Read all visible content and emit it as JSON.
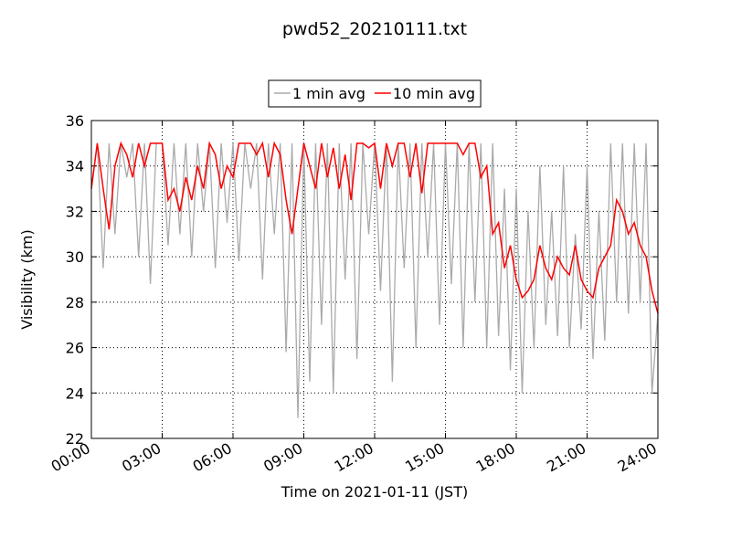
{
  "chart_data": {
    "type": "line",
    "title": "pwd52_20210111.txt",
    "x_label": "Time on 2021-01-11 (JST)",
    "y_label": "Visibility (km)",
    "x": [
      0,
      0.25,
      0.5,
      0.75,
      1,
      1.25,
      1.5,
      1.75,
      2,
      2.25,
      2.5,
      2.75,
      3,
      3.25,
      3.5,
      3.75,
      4,
      4.25,
      4.5,
      4.75,
      5,
      5.25,
      5.5,
      5.75,
      6,
      6.25,
      6.5,
      6.75,
      7,
      7.25,
      7.5,
      7.75,
      8,
      8.25,
      8.5,
      8.75,
      9,
      9.25,
      9.5,
      9.75,
      10,
      10.25,
      10.5,
      10.75,
      11,
      11.25,
      11.5,
      11.75,
      12,
      12.25,
      12.5,
      12.75,
      13,
      13.25,
      13.5,
      13.75,
      14,
      14.25,
      14.5,
      14.75,
      15,
      15.25,
      15.5,
      15.75,
      16,
      16.25,
      16.5,
      16.75,
      17,
      17.25,
      17.5,
      17.75,
      18,
      18.25,
      18.5,
      18.75,
      19,
      19.25,
      19.5,
      19.75,
      20,
      20.25,
      20.5,
      20.75,
      21,
      21.25,
      21.5,
      21.75,
      22,
      22.25,
      22.5,
      22.75,
      23,
      23.25,
      23.5,
      23.75,
      24
    ],
    "series": [
      {
        "name": "1 min avg",
        "color": "#aaaaaa",
        "values": [
          33,
          35,
          29.5,
          35,
          31,
          35,
          33.5,
          35,
          30,
          35,
          28.8,
          35,
          35,
          30.5,
          35,
          31,
          35,
          30,
          35,
          32,
          35,
          29.5,
          35,
          31.5,
          35,
          29.8,
          35,
          33,
          35,
          29,
          35,
          31,
          35,
          25.8,
          35,
          22.9,
          35,
          24.5,
          35,
          27,
          35,
          24,
          35,
          29,
          35,
          25.5,
          35,
          31,
          35,
          28.5,
          35,
          24.5,
          35,
          29.5,
          35,
          26,
          35,
          30,
          35,
          27,
          35,
          28.8,
          35,
          26,
          35,
          28,
          35,
          26,
          35,
          26.5,
          33,
          25,
          33,
          24,
          32,
          26,
          34,
          27,
          32,
          26.5,
          34,
          26,
          31,
          26.8,
          34,
          25.5,
          32,
          26.3,
          35,
          28,
          35,
          27.5,
          35,
          28,
          35,
          24,
          27.5
        ]
      },
      {
        "name": "10 min avg",
        "color": "#ff0000",
        "values": [
          33,
          35,
          33,
          31.2,
          34,
          35,
          34.5,
          33.5,
          35,
          34,
          35,
          35,
          35,
          32.5,
          33,
          32,
          33.5,
          32.5,
          34,
          33,
          35,
          34.5,
          33,
          34,
          33.5,
          35,
          35,
          35,
          34.5,
          35,
          33.5,
          35,
          34.5,
          32.5,
          31,
          33,
          35,
          34,
          33,
          35,
          33.5,
          34.8,
          33,
          34.5,
          32.5,
          35,
          35,
          34.8,
          35,
          33,
          35,
          34,
          35,
          35,
          33.5,
          35,
          32.8,
          35,
          35,
          35,
          35,
          35,
          35,
          34.5,
          35,
          35,
          33.5,
          34,
          31,
          31.5,
          29.5,
          30.5,
          29,
          28.2,
          28.5,
          29,
          30.5,
          29.5,
          29,
          30,
          29.5,
          29.2,
          30.5,
          29,
          28.5,
          28.2,
          29.5,
          30,
          30.5,
          32.5,
          32,
          31,
          31.5,
          30.5,
          30,
          28.5,
          27.5
        ]
      }
    ],
    "xlim": [
      0,
      24
    ],
    "xticks": [
      {
        "value": 0,
        "label": "00:00"
      },
      {
        "value": 3,
        "label": "03:00"
      },
      {
        "value": 6,
        "label": "06:00"
      },
      {
        "value": 9,
        "label": "09:00"
      },
      {
        "value": 12,
        "label": "12:00"
      },
      {
        "value": 15,
        "label": "15:00"
      },
      {
        "value": 18,
        "label": "18:00"
      },
      {
        "value": 21,
        "label": "21:00"
      },
      {
        "value": 24,
        "label": "24:00"
      }
    ],
    "ylim": [
      22,
      36
    ],
    "yticks": [
      22,
      24,
      26,
      28,
      30,
      32,
      34,
      36
    ],
    "grid": true,
    "legend": "top"
  }
}
